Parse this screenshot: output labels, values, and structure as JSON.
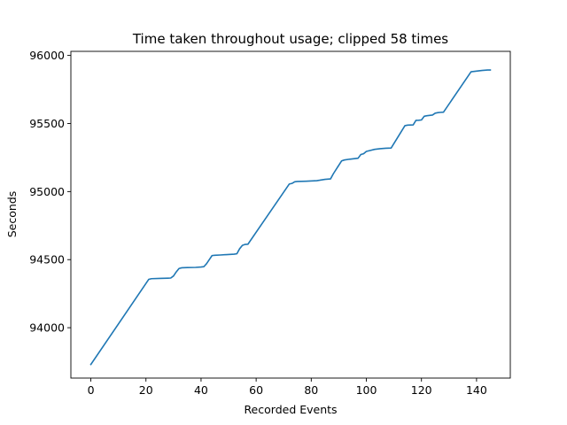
{
  "chart_data": {
    "type": "line",
    "title": "Time taken throughout usage; clipped 58 times",
    "xlabel": "Recorded Events",
    "ylabel": "Seconds",
    "xlim": [
      -7.25,
      152.25
    ],
    "ylim": [
      93630,
      96030
    ],
    "xticks": [
      0,
      20,
      40,
      60,
      80,
      100,
      120,
      140
    ],
    "yticks": [
      94000,
      94500,
      95000,
      95500,
      96000
    ],
    "grid": false,
    "colors": {
      "line": "#1f77b4"
    },
    "series": [
      {
        "x": [
          0,
          21,
          22,
          25,
          28,
          29,
          30,
          31,
          32,
          33,
          35,
          38,
          40,
          41,
          42,
          43,
          44,
          45,
          47,
          50,
          52,
          53,
          54,
          55,
          56,
          57,
          72,
          73,
          74,
          75,
          78,
          82,
          83,
          85,
          87,
          88,
          91,
          92,
          94,
          97,
          98,
          99,
          100,
          101,
          103,
          105,
          107,
          109,
          114,
          115,
          117,
          118,
          119,
          120,
          121,
          122,
          124,
          125,
          126,
          127,
          128,
          138,
          140,
          142,
          144,
          145
        ],
        "y": [
          93730,
          94355,
          94360,
          94362,
          94364,
          94365,
          94380,
          94410,
          94435,
          94440,
          94442,
          94443,
          94446,
          94448,
          94470,
          94500,
          94530,
          94532,
          94534,
          94538,
          94540,
          94543,
          94580,
          94605,
          94612,
          94613,
          95055,
          95060,
          95072,
          95074,
          95076,
          95080,
          95083,
          95090,
          95093,
          95130,
          95225,
          95232,
          95238,
          95245,
          95272,
          95278,
          95295,
          95300,
          95310,
          95315,
          95318,
          95320,
          95484,
          95488,
          95490,
          95523,
          95524,
          95526,
          95553,
          95557,
          95562,
          95576,
          95580,
          95582,
          95583,
          95880,
          95885,
          95890,
          95893,
          95893
        ]
      }
    ]
  }
}
